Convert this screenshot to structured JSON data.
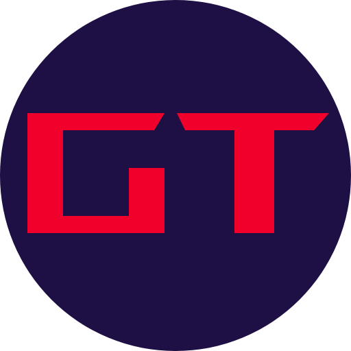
{
  "logo": {
    "lettering": "GT",
    "background_color": "#1E0F44",
    "letter_color": "#F0002B"
  }
}
